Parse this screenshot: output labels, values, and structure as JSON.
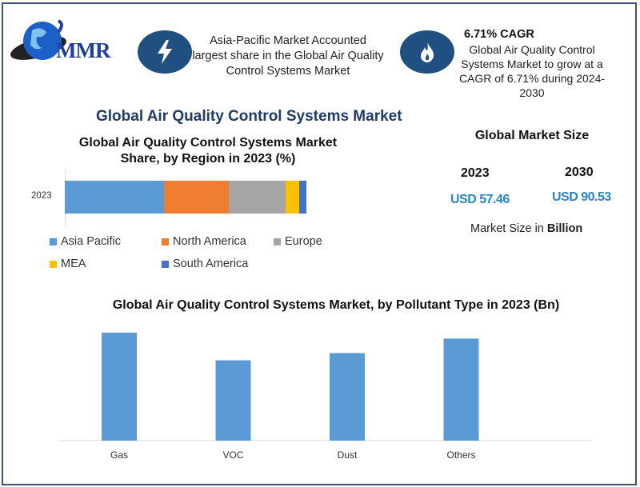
{
  "brand": {
    "logo_text": "MMR"
  },
  "header": {
    "info1": {
      "icon": "lightning-icon",
      "text": "Asia-Pacific Market Accounted largest share in the Global Air Quality Control Systems Market"
    },
    "info2": {
      "icon": "flame-icon",
      "title": "6.71% CAGR",
      "text": "Global Air Quality Control Systems Market to grow at a CAGR of 6.71% during 2024-2030"
    }
  },
  "main_title": "Global Air Quality Control Systems Market",
  "market_size": {
    "title": "Global Market Size",
    "year1": "2023",
    "value1": "USD 57.46",
    "year2": "2030",
    "value2": "USD 90.53",
    "note_prefix": "Market Size in ",
    "note_bold": "Billion"
  },
  "colors": {
    "accent": "#1f5080",
    "bar": "#5b9bd5"
  },
  "chart_data": [
    {
      "type": "bar",
      "orientation": "horizontal-stacked",
      "title": "Global Air Quality Control Systems Market Share, by Region in 2023 (%)",
      "categories": [
        "2023"
      ],
      "series": [
        {
          "name": "Asia Pacific",
          "values": [
            41
          ],
          "color": "#5b9bd5"
        },
        {
          "name": "North America",
          "values": [
            27
          ],
          "color": "#ed7d31"
        },
        {
          "name": "Europe",
          "values": [
            23.5
          ],
          "color": "#a5a5a5"
        },
        {
          "name": "MEA",
          "values": [
            5.5
          ],
          "color": "#ffc000"
        },
        {
          "name": "South America",
          "values": [
            3
          ],
          "color": "#4472c4"
        }
      ],
      "legend": "bottom"
    },
    {
      "type": "bar",
      "title": "Global Air Quality Control Systems Market, by Pollutant Type in 2023 (Bn)",
      "categories": [
        "Gas",
        "VOC",
        "Dust",
        "Others"
      ],
      "values": [
        16.4,
        12.2,
        13.3,
        15.5
      ],
      "xlabel": "",
      "ylabel": "",
      "ylim": [
        0,
        16.4
      ]
    }
  ]
}
